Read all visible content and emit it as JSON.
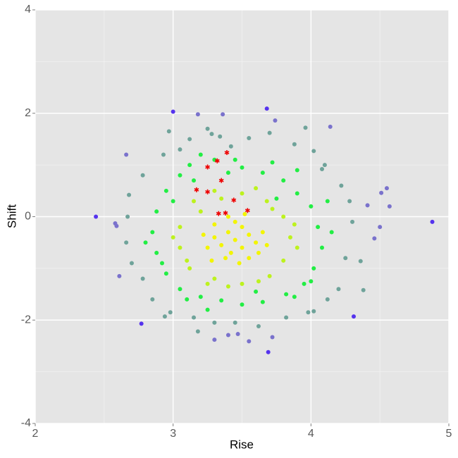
{
  "chart_data": {
    "type": "scatter",
    "x_label": "Rise",
    "y_label": "Shift",
    "xlim": [
      2,
      5
    ],
    "ylim": [
      -4,
      4
    ],
    "xticks": [
      2,
      3,
      4,
      5
    ],
    "yticks": [
      -4,
      -2,
      0,
      2,
      4
    ],
    "x_minor_grid": [
      2.5,
      3.5,
      4.5
    ],
    "y_minor_grid": [
      -3,
      -1,
      1,
      3
    ],
    "grid": true,
    "series": [
      {
        "color": "#f3f500",
        "marker": "circle",
        "x": [
          3.45,
          3.4,
          3.5,
          3.35,
          3.55,
          3.42,
          3.5,
          3.3,
          3.6,
          3.45,
          3.38,
          3.55,
          3.25,
          3.65,
          3.48,
          3.3,
          3.62,
          3.4,
          3.52,
          3.28,
          3.68,
          3.22
        ],
        "y": [
          -0.45,
          -0.3,
          -0.6,
          -0.55,
          -0.35,
          -0.7,
          -0.2,
          -0.4,
          -0.5,
          -0.1,
          -0.8,
          -0.8,
          -0.6,
          -0.3,
          -0.9,
          -0.15,
          -0.7,
          0.0,
          0.05,
          -0.85,
          -0.55,
          -0.35
        ]
      },
      {
        "color": "#bdf21e",
        "marker": "circle",
        "x": [
          3.15,
          3.3,
          3.5,
          3.68,
          3.8,
          3.85,
          3.8,
          3.7,
          3.5,
          3.3,
          3.12,
          3.05,
          3.05,
          3.2,
          3.6,
          3.9,
          3.0,
          3.4,
          3.62,
          3.25,
          3.72,
          3.1,
          3.88,
          3.35
        ],
        "y": [
          0.3,
          0.5,
          0.45,
          0.3,
          0.0,
          -0.4,
          -0.85,
          -1.15,
          -1.3,
          -1.2,
          -1.0,
          -0.6,
          -0.2,
          0.1,
          0.55,
          -0.6,
          -0.4,
          -1.35,
          -1.25,
          -1.3,
          0.15,
          -0.85,
          -0.15,
          0.35
        ]
      },
      {
        "color": "#22ee44",
        "marker": "circle",
        "x": [
          3.2,
          3.3,
          3.5,
          3.65,
          3.8,
          3.9,
          4.0,
          4.05,
          4.08,
          4.02,
          3.95,
          3.82,
          3.65,
          3.5,
          3.35,
          3.2,
          3.05,
          2.95,
          2.88,
          2.85,
          2.88,
          2.95,
          3.05,
          3.12,
          3.45,
          3.72,
          3.88,
          3.1,
          2.8,
          4.15,
          4.12,
          3.6,
          3.0,
          3.25,
          3.9,
          2.92,
          3.75,
          3.15,
          4.0,
          3.4
        ],
        "y": [
          1.2,
          1.1,
          0.95,
          0.85,
          0.7,
          0.45,
          0.2,
          -0.2,
          -0.6,
          -1.0,
          -1.3,
          -1.5,
          -1.65,
          -1.7,
          -1.62,
          -1.55,
          -1.4,
          -1.1,
          -0.7,
          -0.3,
          0.1,
          0.5,
          0.8,
          1.0,
          1.1,
          1.05,
          -1.55,
          -1.6,
          -0.5,
          -0.3,
          0.3,
          -1.45,
          0.3,
          -1.8,
          0.9,
          -0.9,
          0.35,
          0.7,
          -1.25,
          0.85
        ]
      },
      {
        "color": "#6fa39a",
        "marker": "circle",
        "x": [
          3.25,
          3.28,
          3.34,
          3.42,
          3.55,
          3.7,
          3.88,
          4.02,
          4.1,
          4.22,
          4.28,
          4.3,
          4.25,
          4.2,
          4.12,
          3.98,
          3.82,
          3.62,
          3.45,
          3.3,
          3.15,
          2.98,
          2.85,
          2.78,
          2.7,
          2.66,
          2.67,
          2.68,
          2.78,
          2.93,
          3.05,
          2.97,
          3.12,
          3.96,
          4.08,
          4.38,
          4.36,
          2.94,
          3.18,
          4.02
        ],
        "y": [
          1.7,
          1.6,
          1.55,
          1.36,
          1.52,
          1.62,
          1.4,
          1.27,
          1.0,
          0.6,
          0.3,
          -0.1,
          -0.8,
          -1.4,
          -1.6,
          -1.85,
          -1.95,
          -2.12,
          -2.05,
          -2.05,
          -1.95,
          -1.85,
          -1.6,
          -1.2,
          -0.9,
          -0.5,
          0.0,
          0.42,
          0.8,
          1.2,
          1.3,
          1.65,
          1.5,
          1.72,
          0.92,
          -1.42,
          -0.86,
          -1.93,
          -2.22,
          -1.83
        ]
      },
      {
        "color": "#7a72cc",
        "marker": "circle",
        "x": [
          3.18,
          3.36,
          4.14,
          2.66,
          4.55,
          4.51,
          4.46,
          4.41,
          3.55,
          3.47,
          3.3,
          3.4,
          4.57,
          2.61,
          2.58,
          2.59,
          4.5,
          3.72,
          3.74
        ],
        "y": [
          1.98,
          1.98,
          1.74,
          1.2,
          0.55,
          0.46,
          -0.42,
          0.22,
          -2.41,
          -2.27,
          -2.38,
          -2.29,
          0.2,
          -1.15,
          -0.13,
          -0.18,
          -0.2,
          -2.33,
          1.86
        ]
      },
      {
        "color": "#5533ee",
        "marker": "circle",
        "x": [
          2.44,
          3.0,
          4.88,
          3.69,
          2.77,
          4.31,
          3.68
        ],
        "y": [
          0.0,
          2.03,
          -0.1,
          -2.62,
          -2.07,
          -1.93,
          2.09
        ]
      },
      {
        "color": "#ee0000",
        "marker": "asterisk",
        "x": [
          3.25,
          3.32,
          3.39,
          3.35,
          3.17,
          3.25,
          3.33,
          3.38,
          3.44,
          3.54
        ],
        "y": [
          0.96,
          1.08,
          1.24,
          0.7,
          0.52,
          0.48,
          0.06,
          0.07,
          0.32,
          0.12
        ]
      }
    ]
  }
}
